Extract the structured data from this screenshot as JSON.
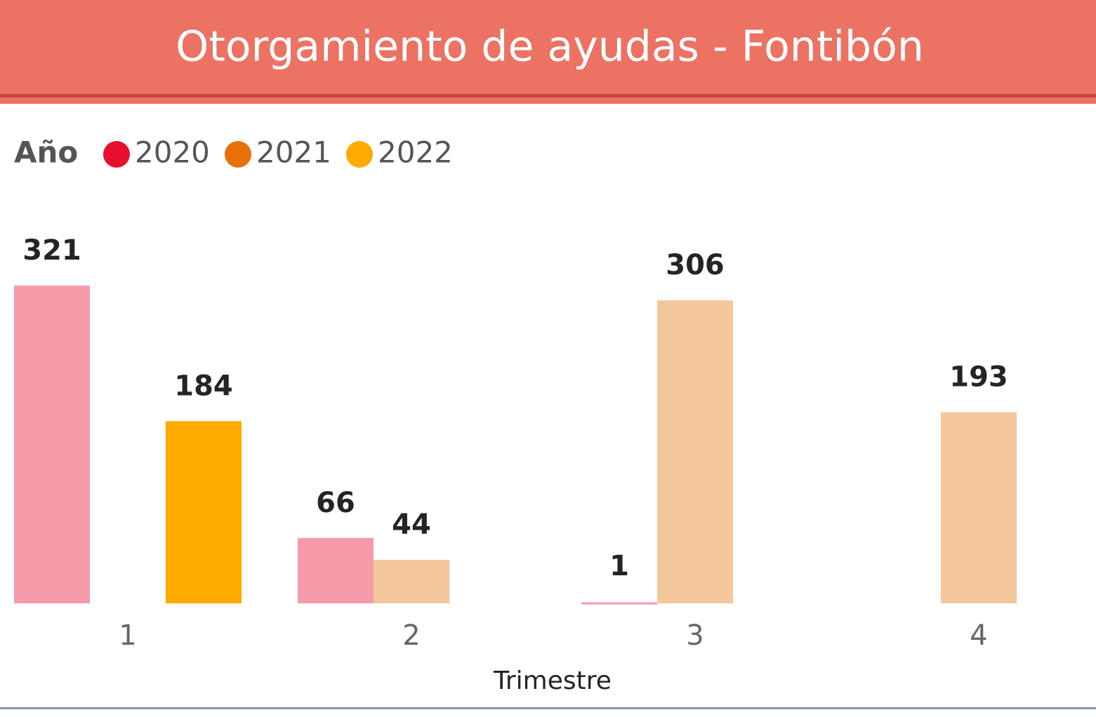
{
  "chart_data": {
    "type": "bar",
    "title": "Otorgamiento de ayudas - Fontibón",
    "legend_title": "Año",
    "x_label": "Trimestre",
    "categories": [
      "1",
      "2",
      "3",
      "4"
    ],
    "series": [
      {
        "name": "2020",
        "color": "#E8112D",
        "bar_color": "#F59BAA",
        "values": [
          321,
          66,
          1,
          null
        ]
      },
      {
        "name": "2021",
        "color": "#E8700A",
        "bar_color": "#F4C69C",
        "values": [
          null,
          44,
          306,
          193
        ]
      },
      {
        "name": "2022",
        "color": "#FFAB00",
        "bar_color": "#FFAB00",
        "values": [
          184,
          null,
          null,
          null
        ]
      }
    ],
    "legend": "top-left",
    "grid": false
  }
}
